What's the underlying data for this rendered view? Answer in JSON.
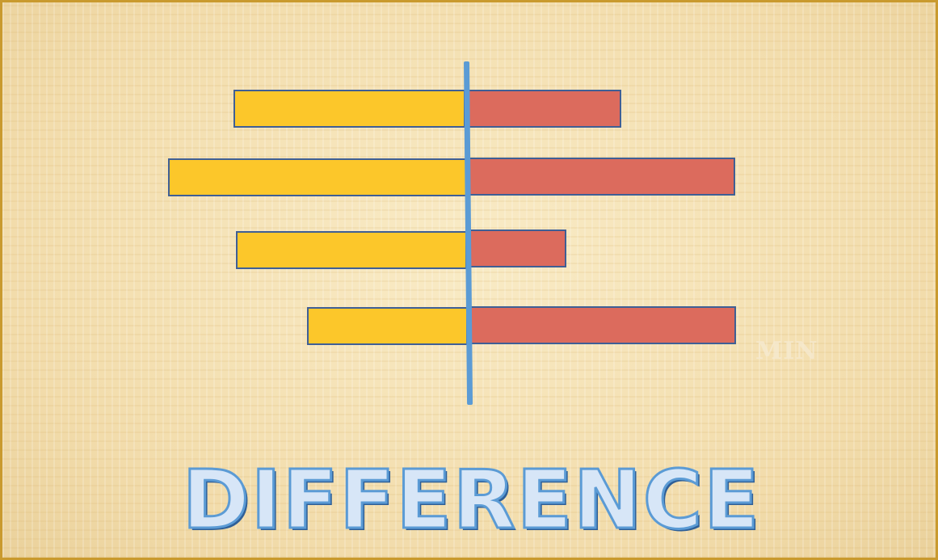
{
  "title": "DIFFERENCE",
  "faint_mark": "MIN",
  "colors": {
    "left_bars": "#fcc72a",
    "right_bars": "#dc6b5d",
    "center_line": "#5b9bd5",
    "title_text": "#5b9bd5",
    "frame": "#c99a2e"
  },
  "icon": "diverging-bar-graphic"
}
